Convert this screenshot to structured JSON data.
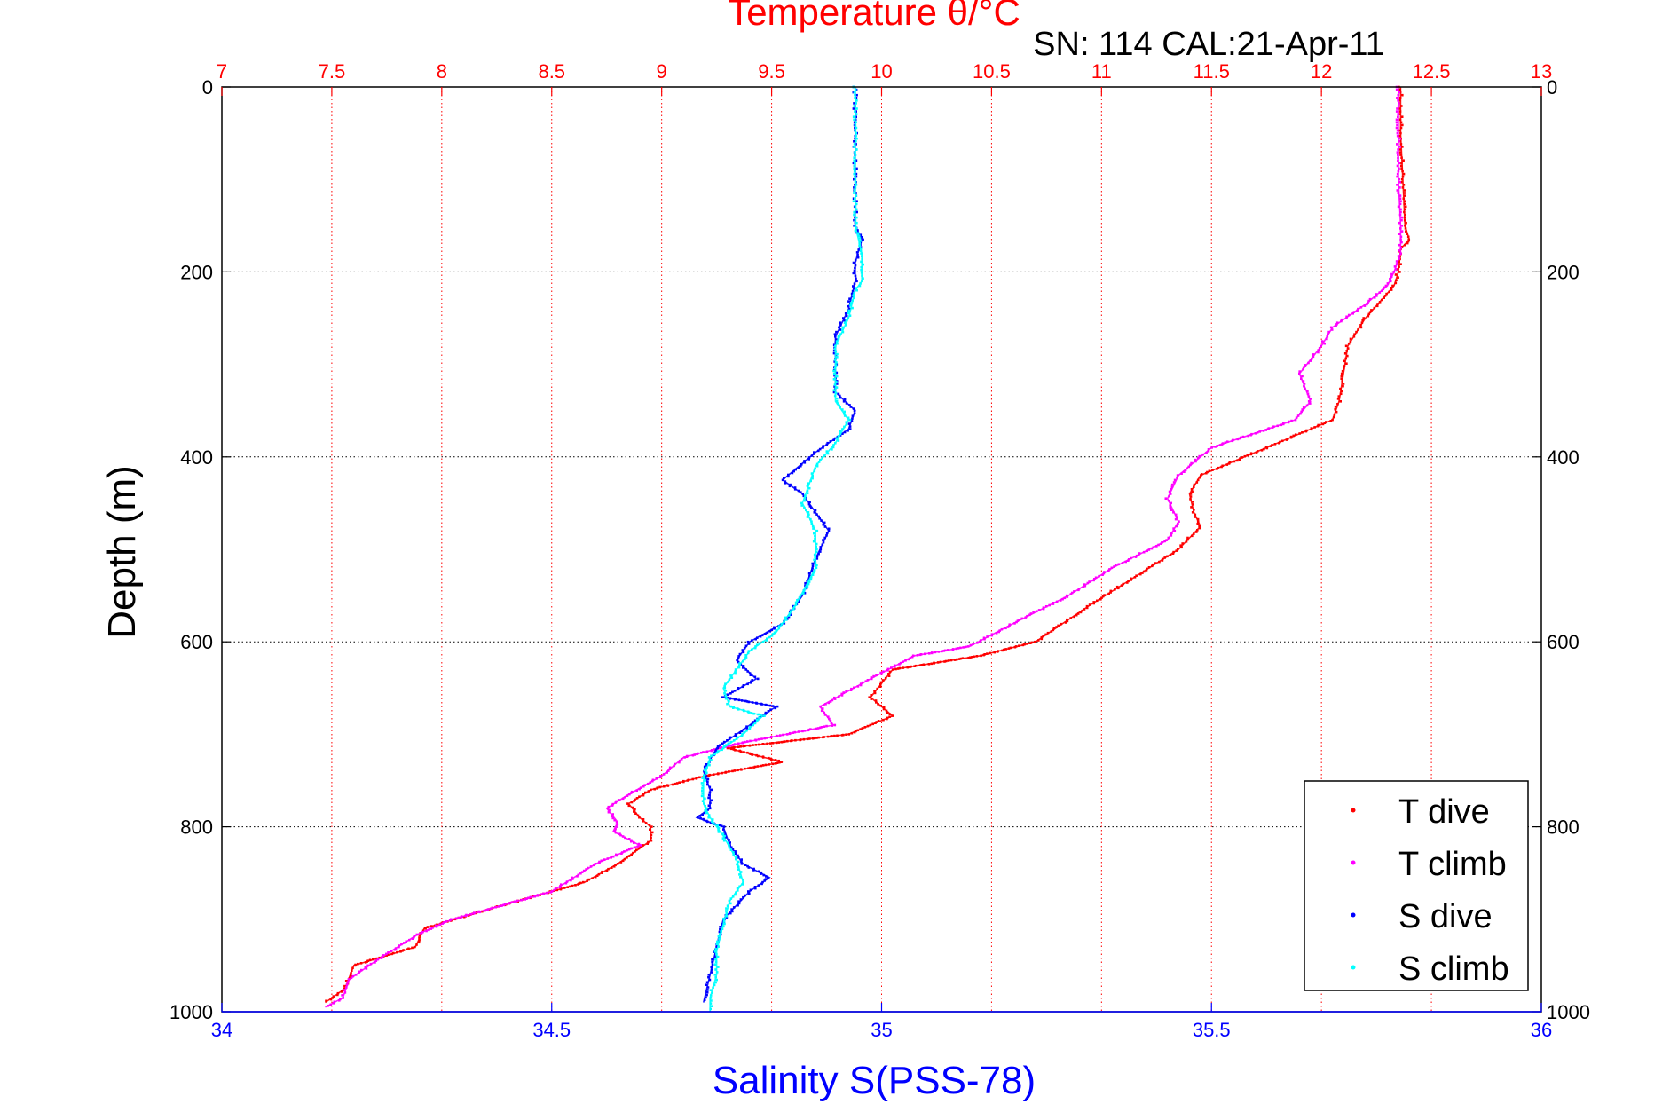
{
  "chart_data": {
    "type": "scatter",
    "title": "Temperature θ/°C",
    "subtitle": "SN: 114  CAL:21-Apr-11",
    "ylabel": "Depth (m)",
    "xlabel_bottom": "Salinity S(PSS-78)",
    "xlabel_top": "Temperature θ/°C",
    "y_axis": {
      "range": [
        0,
        1000
      ],
      "reversed": true,
      "ticks": [
        0,
        200,
        400,
        600,
        800,
        1000
      ],
      "tick_labels": [
        "0",
        "200",
        "400",
        "600",
        "800",
        "1000"
      ]
    },
    "x_bottom_axis": {
      "range": [
        34,
        36
      ],
      "ticks": [
        34,
        34.5,
        35,
        35.5,
        36
      ],
      "tick_labels": [
        "34",
        "34.5",
        "35",
        "35.5",
        "36"
      ],
      "color": "#0000ff"
    },
    "x_top_axis": {
      "range": [
        7,
        13
      ],
      "ticks": [
        7,
        7.5,
        8,
        8.5,
        9,
        9.5,
        10,
        10.5,
        11,
        11.5,
        12,
        12.5,
        13
      ],
      "tick_labels": [
        "7",
        "7.5",
        "8",
        "8.5",
        "9",
        "9.5",
        "10",
        "10.5",
        "11",
        "11.5",
        "12",
        "12.5",
        "13"
      ],
      "color": "#ff0000"
    },
    "grid": true,
    "legend_position": "bottom-right",
    "series": [
      {
        "name": "T dive",
        "axis": "top",
        "color": "#ff0000",
        "points": [
          [
            12.36,
            0
          ],
          [
            12.36,
            50
          ],
          [
            12.37,
            100
          ],
          [
            12.38,
            150
          ],
          [
            12.4,
            165
          ],
          [
            12.36,
            175
          ],
          [
            12.35,
            200
          ],
          [
            12.33,
            215
          ],
          [
            12.2,
            250
          ],
          [
            12.12,
            280
          ],
          [
            12.1,
            310
          ],
          [
            12.08,
            340
          ],
          [
            12.05,
            360
          ],
          [
            11.8,
            385
          ],
          [
            11.6,
            405
          ],
          [
            11.45,
            420
          ],
          [
            11.4,
            440
          ],
          [
            11.42,
            460
          ],
          [
            11.45,
            475
          ],
          [
            11.35,
            500
          ],
          [
            11.15,
            530
          ],
          [
            10.95,
            560
          ],
          [
            10.7,
            600
          ],
          [
            10.45,
            615
          ],
          [
            10.05,
            630
          ],
          [
            9.95,
            660
          ],
          [
            10.05,
            680
          ],
          [
            9.85,
            700
          ],
          [
            9.3,
            715
          ],
          [
            9.55,
            730
          ],
          [
            9.2,
            745
          ],
          [
            8.95,
            760
          ],
          [
            8.85,
            775
          ],
          [
            8.9,
            790
          ],
          [
            8.95,
            800
          ],
          [
            8.95,
            815
          ],
          [
            8.8,
            840
          ],
          [
            8.65,
            860
          ],
          [
            8.2,
            890
          ],
          [
            7.92,
            910
          ],
          [
            7.88,
            930
          ],
          [
            7.6,
            950
          ],
          [
            7.56,
            975
          ],
          [
            7.47,
            990
          ]
        ]
      },
      {
        "name": "T climb",
        "axis": "top",
        "color": "#ff00ff",
        "points": [
          [
            12.35,
            0
          ],
          [
            12.35,
            50
          ],
          [
            12.35,
            100
          ],
          [
            12.36,
            150
          ],
          [
            12.36,
            180
          ],
          [
            12.33,
            200
          ],
          [
            12.3,
            215
          ],
          [
            12.2,
            235
          ],
          [
            12.05,
            260
          ],
          [
            12.0,
            280
          ],
          [
            11.9,
            310
          ],
          [
            11.95,
            340
          ],
          [
            11.88,
            360
          ],
          [
            11.5,
            390
          ],
          [
            11.35,
            420
          ],
          [
            11.3,
            445
          ],
          [
            11.35,
            470
          ],
          [
            11.3,
            490
          ],
          [
            11.05,
            520
          ],
          [
            10.85,
            550
          ],
          [
            10.6,
            580
          ],
          [
            10.4,
            605
          ],
          [
            10.15,
            615
          ],
          [
            9.95,
            640
          ],
          [
            9.72,
            670
          ],
          [
            9.78,
            690
          ],
          [
            9.35,
            710
          ],
          [
            9.1,
            725
          ],
          [
            9.0,
            745
          ],
          [
            8.85,
            765
          ],
          [
            8.75,
            780
          ],
          [
            8.8,
            795
          ],
          [
            8.78,
            805
          ],
          [
            8.9,
            820
          ],
          [
            8.7,
            840
          ],
          [
            8.5,
            870
          ],
          [
            8.05,
            900
          ],
          [
            7.9,
            915
          ],
          [
            7.7,
            945
          ],
          [
            7.58,
            965
          ],
          [
            7.55,
            985
          ],
          [
            7.47,
            995
          ]
        ]
      },
      {
        "name": "S dive",
        "axis": "bottom",
        "color": "#0000ff",
        "points": [
          [
            34.96,
            0
          ],
          [
            34.96,
            50
          ],
          [
            34.96,
            100
          ],
          [
            34.96,
            150
          ],
          [
            34.97,
            165
          ],
          [
            34.96,
            190
          ],
          [
            34.96,
            210
          ],
          [
            34.95,
            240
          ],
          [
            34.93,
            270
          ],
          [
            34.93,
            300
          ],
          [
            34.93,
            330
          ],
          [
            34.96,
            350
          ],
          [
            34.95,
            370
          ],
          [
            34.9,
            395
          ],
          [
            34.85,
            425
          ],
          [
            34.88,
            440
          ],
          [
            34.9,
            460
          ],
          [
            34.92,
            480
          ],
          [
            34.9,
            510
          ],
          [
            34.88,
            550
          ],
          [
            34.85,
            580
          ],
          [
            34.8,
            600
          ],
          [
            34.78,
            620
          ],
          [
            34.81,
            640
          ],
          [
            34.76,
            660
          ],
          [
            34.84,
            670
          ],
          [
            34.8,
            690
          ],
          [
            34.75,
            715
          ],
          [
            34.73,
            740
          ],
          [
            34.74,
            760
          ],
          [
            34.74,
            780
          ],
          [
            34.72,
            790
          ],
          [
            34.76,
            800
          ],
          [
            34.77,
            820
          ],
          [
            34.79,
            840
          ],
          [
            34.83,
            855
          ],
          [
            34.8,
            870
          ],
          [
            34.76,
            900
          ],
          [
            34.75,
            930
          ],
          [
            34.74,
            960
          ],
          [
            34.73,
            990
          ]
        ]
      },
      {
        "name": "S climb",
        "axis": "bottom",
        "color": "#00ffff",
        "points": [
          [
            34.96,
            0
          ],
          [
            34.96,
            50
          ],
          [
            34.96,
            100
          ],
          [
            34.96,
            150
          ],
          [
            34.97,
            180
          ],
          [
            34.97,
            210
          ],
          [
            34.96,
            220
          ],
          [
            34.95,
            250
          ],
          [
            34.93,
            280
          ],
          [
            34.93,
            310
          ],
          [
            34.93,
            340
          ],
          [
            34.95,
            360
          ],
          [
            34.93,
            385
          ],
          [
            34.9,
            410
          ],
          [
            34.88,
            450
          ],
          [
            34.9,
            480
          ],
          [
            34.9,
            520
          ],
          [
            34.87,
            560
          ],
          [
            34.84,
            590
          ],
          [
            34.8,
            610
          ],
          [
            34.78,
            630
          ],
          [
            34.76,
            650
          ],
          [
            34.77,
            670
          ],
          [
            34.82,
            680
          ],
          [
            34.79,
            700
          ],
          [
            34.74,
            725
          ],
          [
            34.73,
            750
          ],
          [
            34.73,
            775
          ],
          [
            34.74,
            790
          ],
          [
            34.76,
            810
          ],
          [
            34.78,
            835
          ],
          [
            34.79,
            860
          ],
          [
            34.77,
            880
          ],
          [
            34.76,
            905
          ],
          [
            34.75,
            935
          ],
          [
            34.75,
            960
          ],
          [
            34.74,
            985
          ],
          [
            34.74,
            1000
          ]
        ]
      }
    ]
  }
}
